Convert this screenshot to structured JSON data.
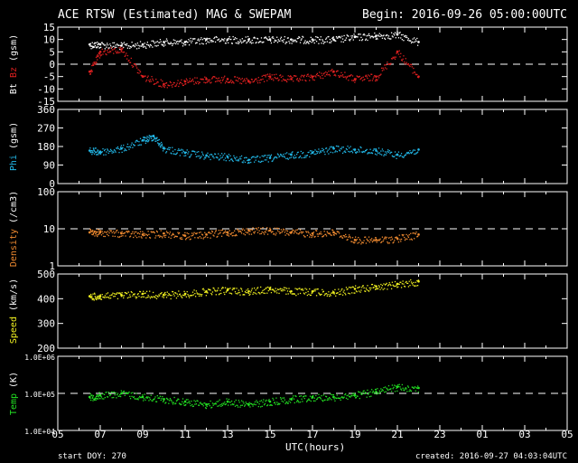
{
  "header": {
    "title": "ACE RTSW (Estimated) MAG & SWEPAM",
    "begin": "Begin: 2016-09-26 05:00:00UTC"
  },
  "footer": {
    "start_doy": "start DOY: 270",
    "created": "created: 2016-09-27 04:03:04UTC",
    "xlabel": "UTC(hours)"
  },
  "colors": {
    "background": "#000000",
    "axes": "#ffffff",
    "bt": "#ffffff",
    "bz": "#e02020",
    "phi": "#22b8e8",
    "density": "#f08a30",
    "speed": "#f0f020",
    "temp": "#22e022"
  },
  "chart_data": [
    {
      "type": "scatter",
      "ylabel_parts": [
        "Bt",
        "Bz",
        "(gsm)"
      ],
      "ylim": [
        -15,
        15
      ],
      "yticks": [
        "15",
        "10",
        "5",
        "0",
        "-5",
        "-10",
        "-15"
      ],
      "dashed_ref": 0,
      "x_hours": [
        6.5,
        7,
        8,
        9,
        10,
        11,
        12,
        13,
        14,
        15,
        16,
        17,
        18,
        19,
        20,
        21,
        22
      ],
      "series": [
        {
          "name": "Bt",
          "values": [
            8,
            8,
            7.5,
            8,
            9,
            9,
            10,
            10,
            10,
            10,
            10,
            10,
            10,
            11,
            11.5,
            12,
            9
          ]
        },
        {
          "name": "Bz",
          "values": [
            -3,
            5,
            6,
            -5,
            -8,
            -7,
            -6,
            -6,
            -7,
            -5,
            -6,
            -5,
            -3,
            -6,
            -5,
            5,
            -5
          ]
        }
      ]
    },
    {
      "type": "scatter",
      "ylabel": "Phi (gsm)",
      "ylim": [
        0,
        360
      ],
      "yticks": [
        "360",
        "270",
        "180",
        "90",
        "0"
      ],
      "x_hours": [
        6.5,
        7,
        8,
        9,
        9.5,
        10,
        11,
        12,
        13,
        14,
        15,
        16,
        17,
        18,
        19,
        20,
        21,
        22
      ],
      "series": [
        {
          "name": "Phi",
          "values": [
            160,
            155,
            170,
            210,
            230,
            170,
            150,
            135,
            130,
            115,
            125,
            140,
            150,
            170,
            165,
            160,
            140,
            165
          ]
        }
      ]
    },
    {
      "type": "scatter",
      "ylabel": "Density (/cm3)",
      "scale": "log",
      "ylim": [
        1,
        100
      ],
      "yticks": [
        "100",
        "10",
        "1"
      ],
      "dashed_ref": 10,
      "x_hours": [
        6.5,
        7,
        8,
        9,
        10,
        11,
        12,
        13,
        14,
        15,
        16,
        17,
        18,
        19,
        20,
        21,
        22
      ],
      "series": [
        {
          "name": "Density",
          "values": [
            8,
            8,
            7.5,
            7,
            7.5,
            6.5,
            7,
            8,
            9,
            9,
            8,
            7.5,
            8,
            5,
            5,
            5.5,
            7
          ]
        }
      ]
    },
    {
      "type": "scatter",
      "ylabel": "Speed (km/s)",
      "ylim": [
        200,
        500
      ],
      "yticks": [
        "500",
        "400",
        "300",
        "200"
      ],
      "x_hours": [
        6.5,
        7,
        8,
        9,
        10,
        11,
        12,
        13,
        14,
        15,
        16,
        17,
        18,
        19,
        20,
        21,
        22
      ],
      "series": [
        {
          "name": "Speed",
          "values": [
            410,
            410,
            415,
            420,
            415,
            420,
            430,
            435,
            430,
            440,
            430,
            430,
            425,
            440,
            450,
            460,
            470
          ]
        }
      ]
    },
    {
      "type": "scatter",
      "ylabel": "Temp (K)",
      "scale": "log",
      "ylim": [
        10000,
        1000000
      ],
      "yticks": [
        "1.0E+06",
        "1.0E+05",
        "1.0E+04"
      ],
      "dashed_ref": 100000,
      "x_hours": [
        6.5,
        7,
        8,
        9,
        10,
        11,
        12,
        13,
        14,
        15,
        16,
        17,
        18,
        19,
        20,
        21,
        22
      ],
      "series": [
        {
          "name": "Temp",
          "values": [
            80000,
            90000,
            100000,
            80000,
            70000,
            60000,
            50000,
            60000,
            50000,
            60000,
            70000,
            80000,
            80000,
            90000,
            110000,
            150000,
            140000
          ]
        }
      ]
    }
  ],
  "x_axis": {
    "range_hours": [
      5,
      29
    ],
    "tick_labels": [
      "05",
      "07",
      "09",
      "11",
      "13",
      "15",
      "17",
      "19",
      "21",
      "23",
      "01",
      "03",
      "05"
    ]
  }
}
